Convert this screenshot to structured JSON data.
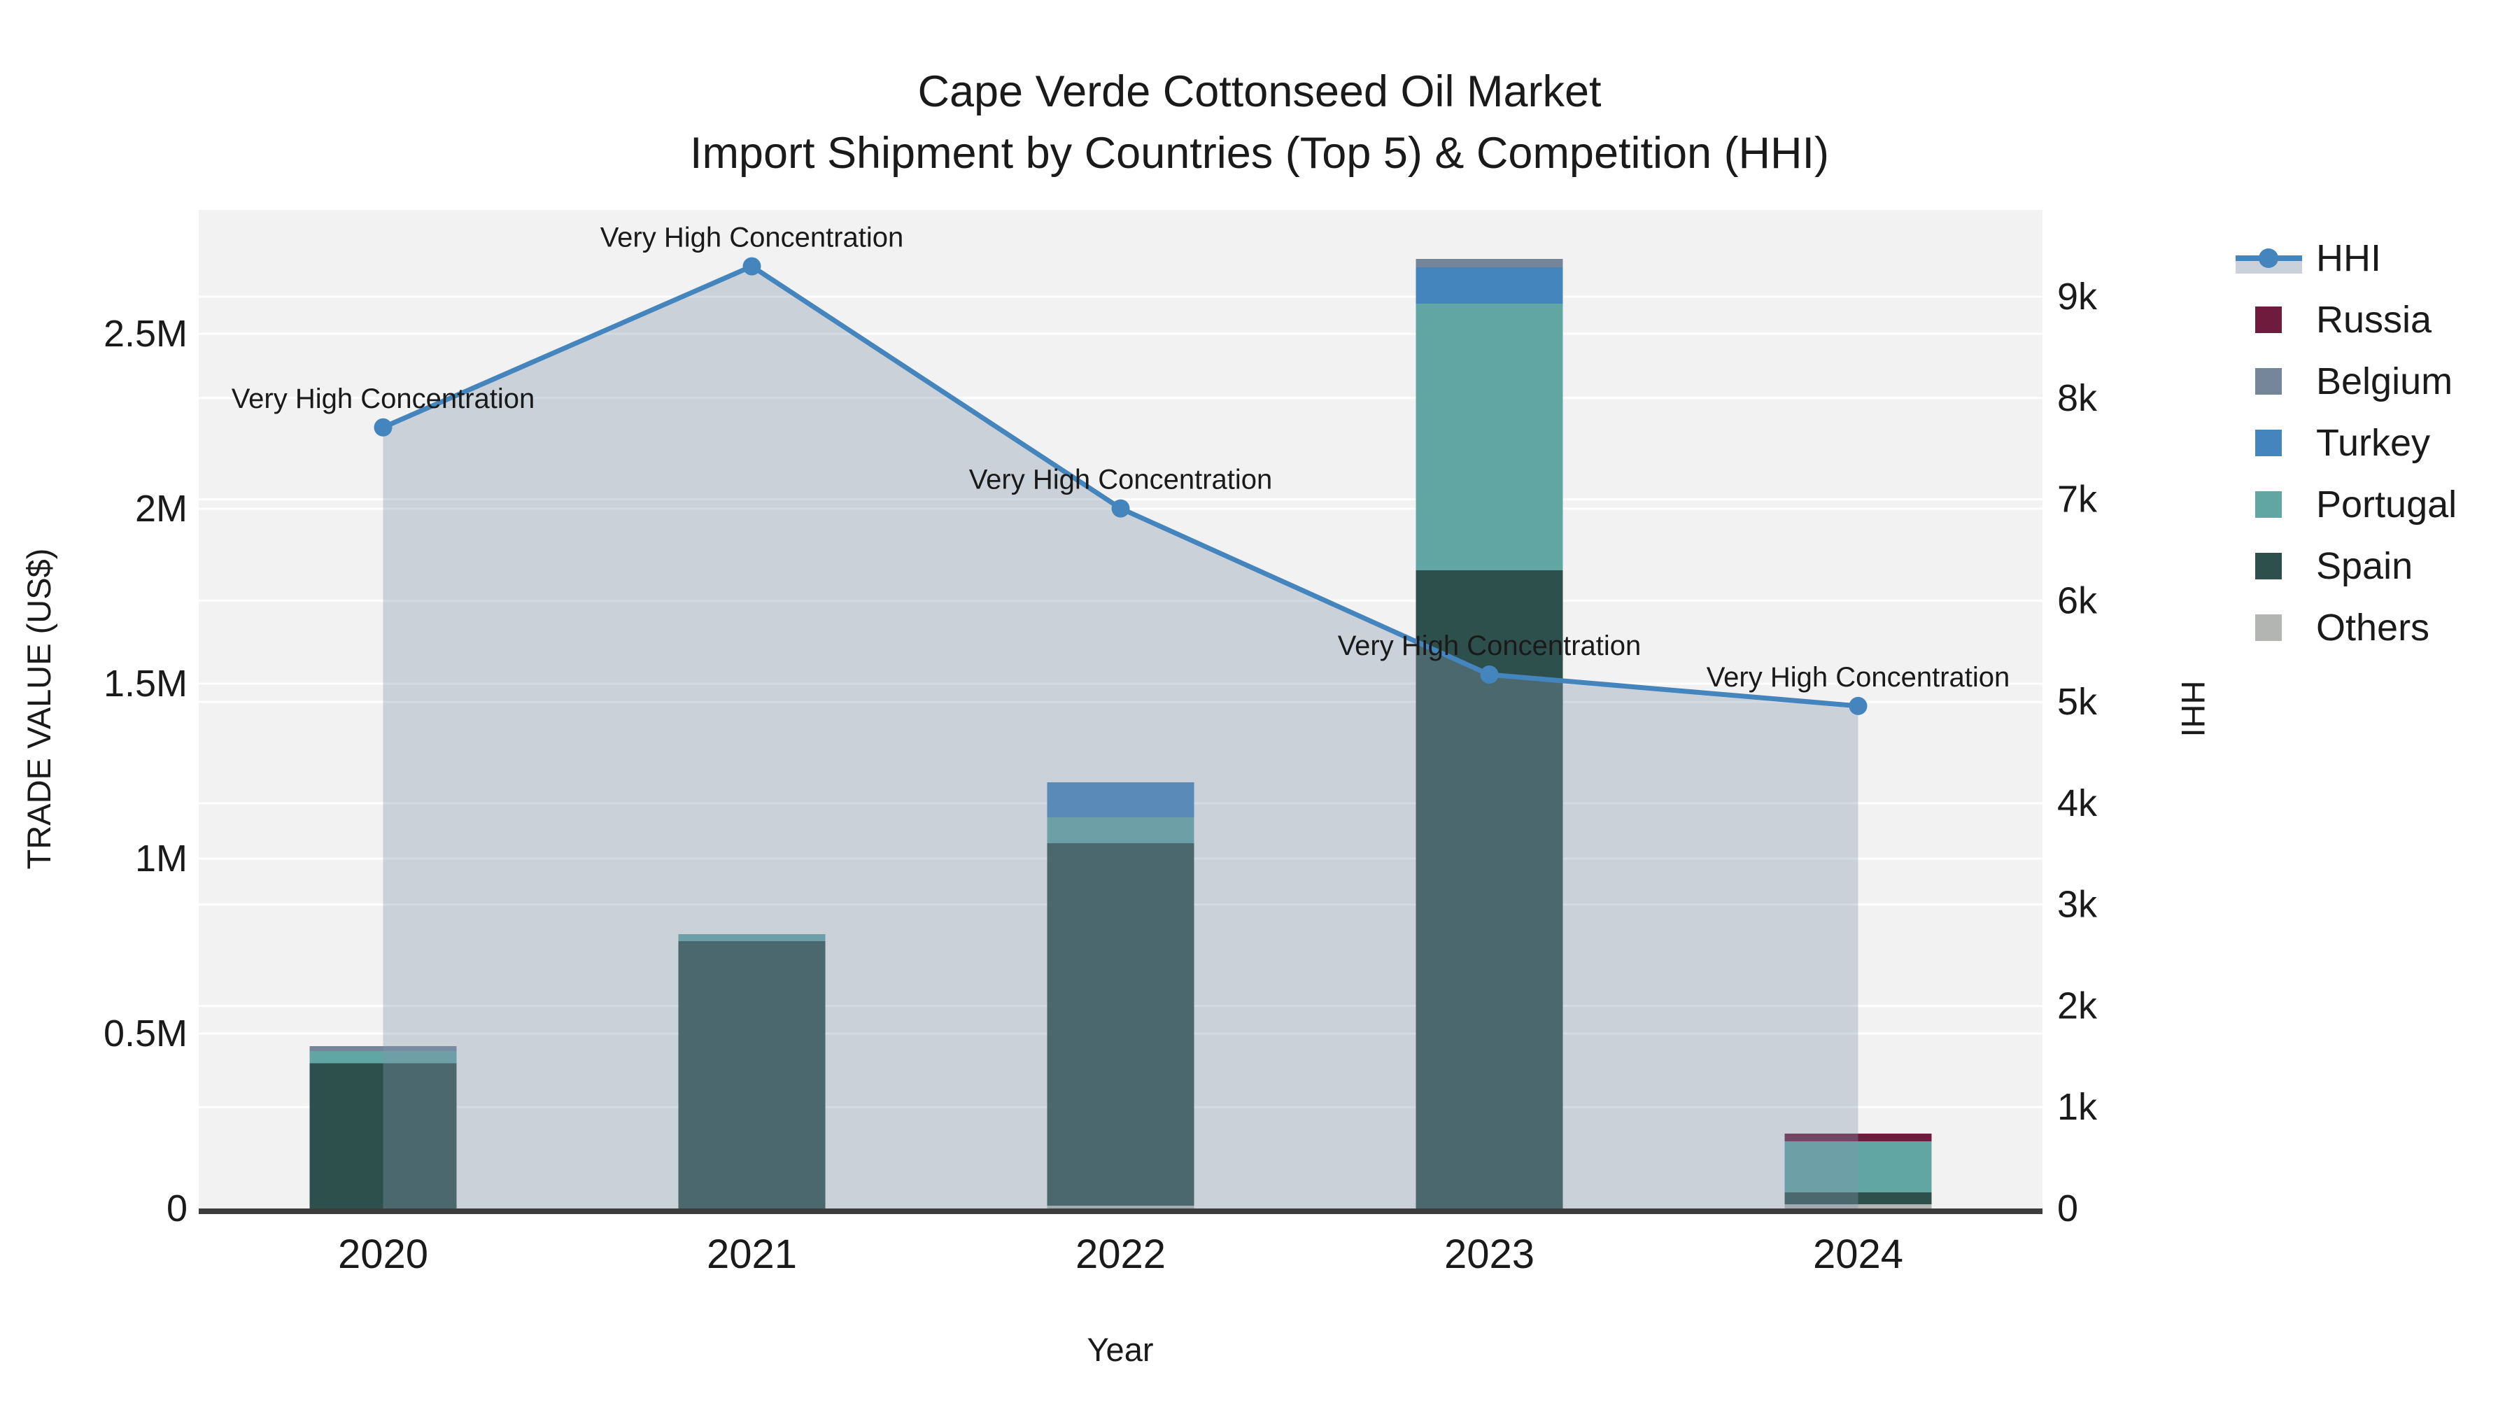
{
  "title": {
    "line1": "Cape Verde Cottonseed Oil Market",
    "line2": "Import Shipment by Countries (Top 5) & Competition (HHI)"
  },
  "axes": {
    "x_title": "Year",
    "y_left_title": "TRADE VALUE (US$)",
    "y_right_title": "HHI",
    "x_ticks": [
      "2020",
      "2021",
      "2022",
      "2023",
      "2024"
    ],
    "y_left_ticks": [
      {
        "label": "0",
        "value": 0
      },
      {
        "label": "0.5M",
        "value": 500000
      },
      {
        "label": "1M",
        "value": 1000000
      },
      {
        "label": "1.5M",
        "value": 1500000
      },
      {
        "label": "2M",
        "value": 2000000
      },
      {
        "label": "2.5M",
        "value": 2500000
      }
    ],
    "y_right_ticks": [
      {
        "label": "0",
        "value": 0
      },
      {
        "label": "1k",
        "value": 1000
      },
      {
        "label": "2k",
        "value": 2000
      },
      {
        "label": "3k",
        "value": 3000
      },
      {
        "label": "4k",
        "value": 4000
      },
      {
        "label": "5k",
        "value": 5000
      },
      {
        "label": "6k",
        "value": 6000
      },
      {
        "label": "7k",
        "value": 7000
      },
      {
        "label": "8k",
        "value": 8000
      },
      {
        "label": "9k",
        "value": 9000
      }
    ]
  },
  "chart_data": {
    "type": "combo",
    "subtypes": [
      "stacked-bar",
      "line-area"
    ],
    "title": "Cape Verde Cottonseed Oil Market — Import Shipment by Countries (Top 5) & Competition (HHI)",
    "xlabel": "Year",
    "ylabel_left": "TRADE VALUE (US$)",
    "ylabel_right": "HHI",
    "categories": [
      "2020",
      "2021",
      "2022",
      "2023",
      "2024"
    ],
    "ylim_left": [
      0,
      2860000
    ],
    "ylim_right": [
      0,
      9860
    ],
    "grid": true,
    "legend_position": "right",
    "bar_series": [
      {
        "name": "Others",
        "color": "#b3b5b3",
        "values": [
          0,
          0,
          8000,
          0,
          12000
        ]
      },
      {
        "name": "Spain",
        "color": "#2e504d",
        "values": [
          415000,
          764000,
          1036000,
          1824000,
          34000
        ]
      },
      {
        "name": "Portugal",
        "color": "#62a6a3",
        "values": [
          35000,
          20000,
          74000,
          762000,
          146000
        ]
      },
      {
        "name": "Turkey",
        "color": "#4585be",
        "values": [
          0,
          0,
          100000,
          104000,
          0
        ]
      },
      {
        "name": "Belgium",
        "color": "#75869b",
        "values": [
          14000,
          0,
          0,
          24000,
          0
        ]
      },
      {
        "name": "Russia",
        "color": "#6e1b3e",
        "values": [
          0,
          0,
          0,
          0,
          22000
        ]
      }
    ],
    "line_series": {
      "name": "HHI",
      "color": "#4585be",
      "area_fill": "rgba(130,148,172,0.35)",
      "values": [
        7710,
        9300,
        6910,
        5270,
        4960
      ]
    },
    "annotations": [
      {
        "x": "2020",
        "text": "Very High Concentration"
      },
      {
        "x": "2021",
        "text": "Very High Concentration"
      },
      {
        "x": "2022",
        "text": "Very High Concentration"
      },
      {
        "x": "2023",
        "text": "Very High Concentration"
      },
      {
        "x": "2024",
        "text": "Very High Concentration"
      }
    ]
  },
  "legend": {
    "order": [
      "HHI",
      "Russia",
      "Belgium",
      "Turkey",
      "Portugal",
      "Spain",
      "Others"
    ]
  },
  "colors": {
    "plot_background": "#f2f2f2",
    "gridline": "#ffffff",
    "axis_line": "#3d3d3d",
    "hhi_line": "#4585be",
    "hhi_area": "#cbd1da"
  }
}
